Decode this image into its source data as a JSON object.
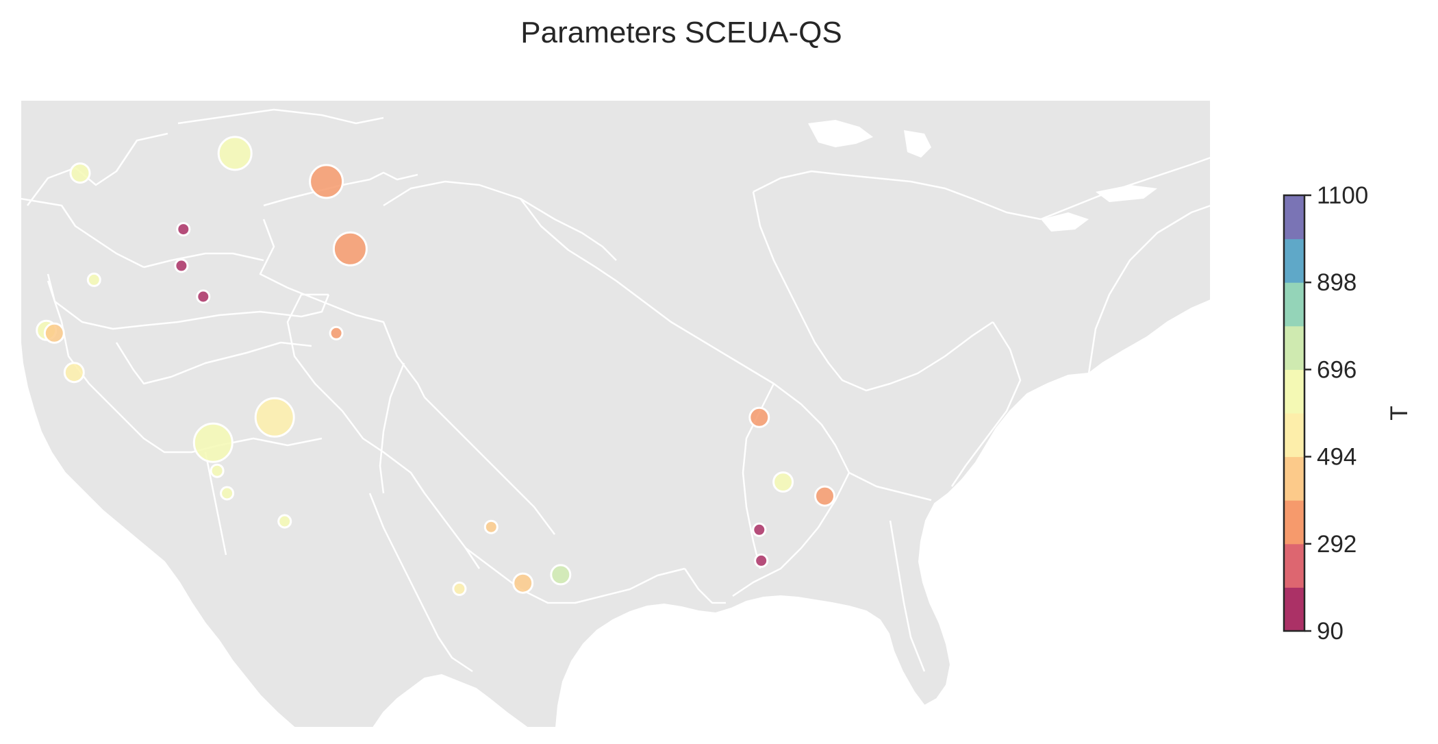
{
  "title": "Parameters SCEUA-QS",
  "colorbar": {
    "label": "T",
    "min": 90,
    "max": 1100,
    "ticks": [
      90,
      292,
      494,
      696,
      898,
      1100
    ],
    "bins": 10,
    "colors": [
      "#ab3166",
      "#dd6670",
      "#f69a6c",
      "#fcca8a",
      "#fdeeaa",
      "#f4f9b4",
      "#cfeab0",
      "#94d4b8",
      "#5fa8c8",
      "#7a74b5"
    ]
  },
  "map": {
    "region": "contiguous United States",
    "land_color": "#e6e6e6",
    "boundary_color": "#ffffff",
    "background_color": "#ffffff"
  },
  "chart_data": {
    "type": "scatter",
    "title": "Parameters SCEUA-QS",
    "x_label": "longitude",
    "y_label": "latitude",
    "color_variable": "T",
    "color_range": [
      90,
      1100
    ],
    "points": [
      {
        "lon": -122.0,
        "lat": 46.9,
        "T": 650,
        "size": 2
      },
      {
        "lon": -121.3,
        "lat": 43.1,
        "T": 620,
        "size": 1
      },
      {
        "lon": -123.7,
        "lat": 41.3,
        "T": 600,
        "size": 2
      },
      {
        "lon": -123.3,
        "lat": 41.2,
        "T": 430,
        "size": 2
      },
      {
        "lon": -122.3,
        "lat": 39.8,
        "T": 560,
        "size": 2
      },
      {
        "lon": -114.2,
        "lat": 47.6,
        "T": 620,
        "size": 3
      },
      {
        "lon": -116.8,
        "lat": 44.9,
        "T": 190,
        "size": 1
      },
      {
        "lon": -116.9,
        "lat": 43.6,
        "T": 190,
        "size": 1
      },
      {
        "lon": -115.8,
        "lat": 42.5,
        "T": 110,
        "size": 1
      },
      {
        "lon": -109.6,
        "lat": 46.6,
        "T": 340,
        "size": 3
      },
      {
        "lon": -108.4,
        "lat": 44.2,
        "T": 340,
        "size": 3
      },
      {
        "lon": -109.1,
        "lat": 41.2,
        "T": 340,
        "size": 1
      },
      {
        "lon": -112.2,
        "lat": 38.2,
        "T": 540,
        "size": 4
      },
      {
        "lon": -115.3,
        "lat": 37.3,
        "T": 640,
        "size": 4
      },
      {
        "lon": -115.1,
        "lat": 36.3,
        "T": 640,
        "size": 1
      },
      {
        "lon": -114.6,
        "lat": 35.5,
        "T": 650,
        "size": 1
      },
      {
        "lon": -111.7,
        "lat": 34.5,
        "T": 650,
        "size": 1
      },
      {
        "lon": -101.3,
        "lat": 34.3,
        "T": 440,
        "size": 1
      },
      {
        "lon": -102.9,
        "lat": 32.1,
        "T": 560,
        "size": 1
      },
      {
        "lon": -99.7,
        "lat": 32.3,
        "T": 450,
        "size": 2
      },
      {
        "lon": -97.8,
        "lat": 32.6,
        "T": 740,
        "size": 2
      },
      {
        "lon": -87.8,
        "lat": 38.2,
        "T": 350,
        "size": 2
      },
      {
        "lon": -86.6,
        "lat": 35.9,
        "T": 620,
        "size": 2
      },
      {
        "lon": -84.5,
        "lat": 35.4,
        "T": 330,
        "size": 2
      },
      {
        "lon": -87.8,
        "lat": 34.2,
        "T": 100,
        "size": 1
      },
      {
        "lon": -87.7,
        "lat": 33.1,
        "T": 110,
        "size": 1
      }
    ]
  }
}
